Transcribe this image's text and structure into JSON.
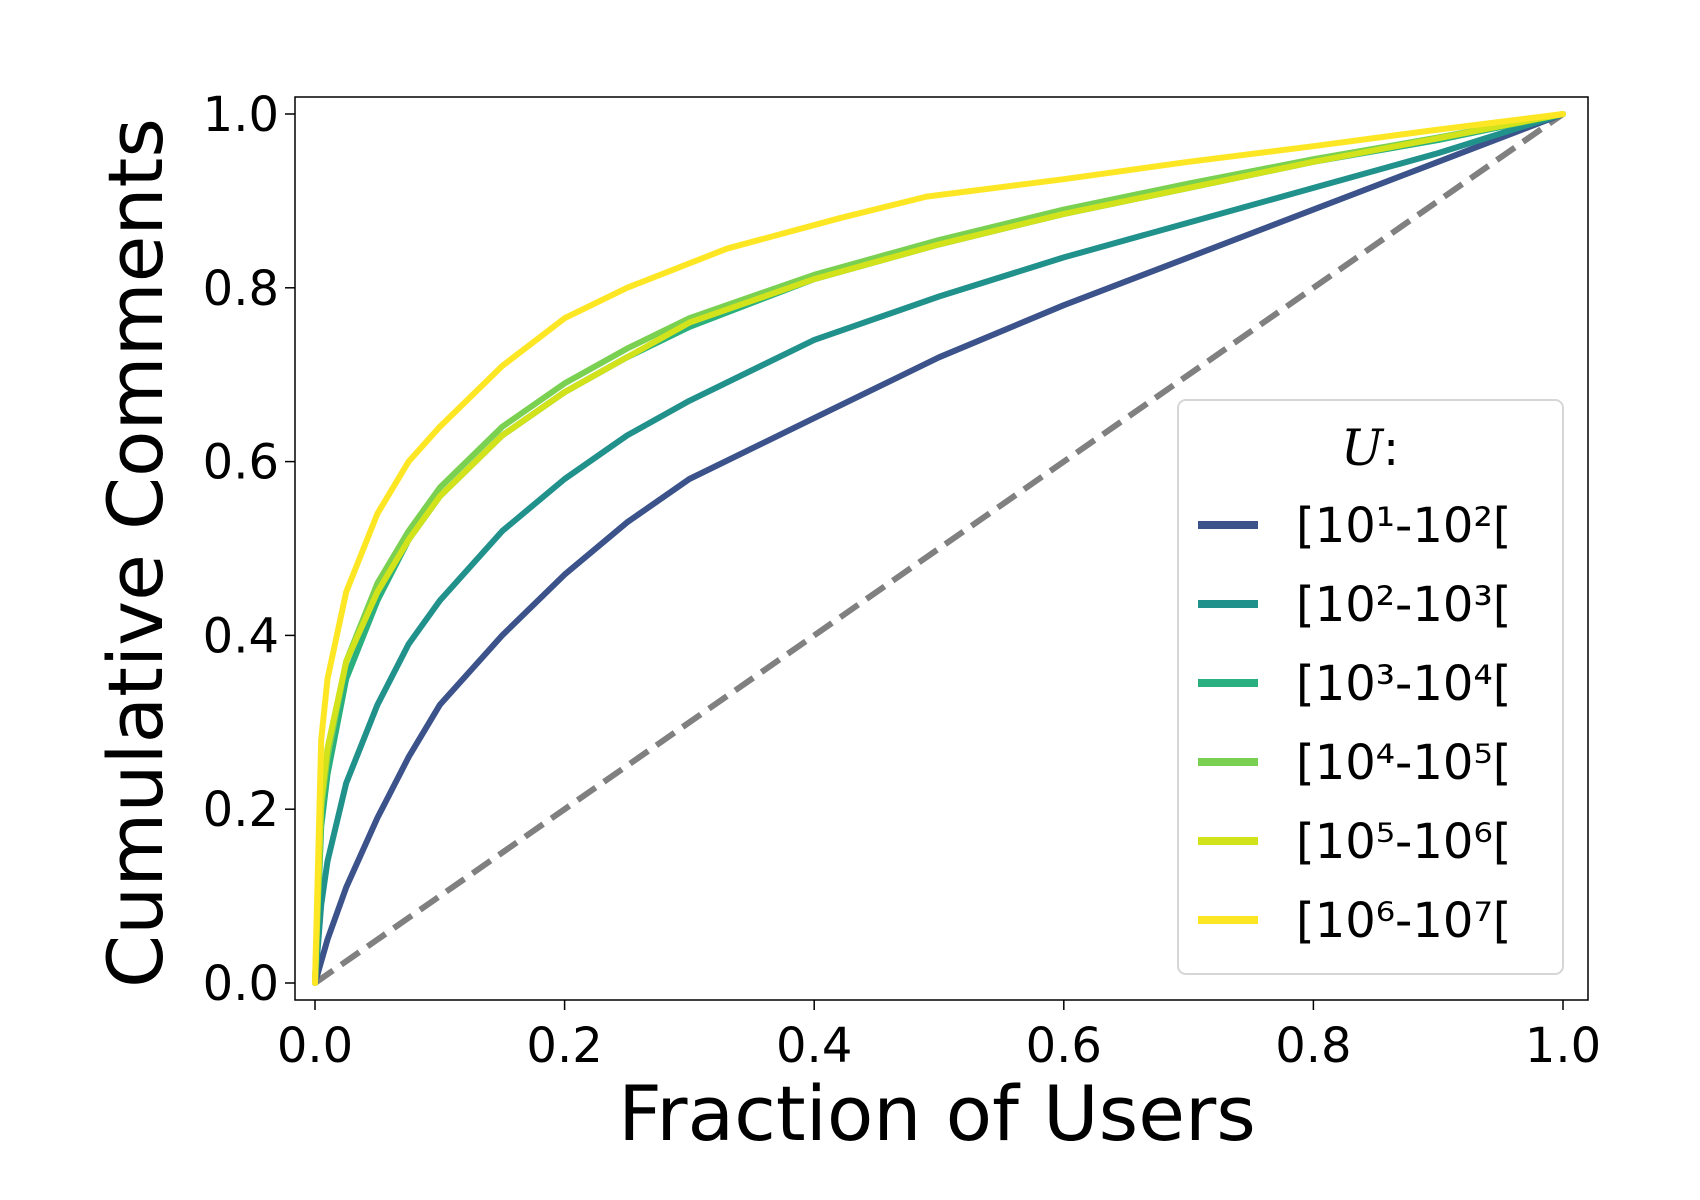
{
  "chart_data": {
    "type": "line",
    "xlabel": "Fraction of Users",
    "ylabel": "Cumulative Comments",
    "xlim": [
      0.0,
      1.0
    ],
    "ylim": [
      0.0,
      1.0
    ],
    "xticks": [
      "0.0",
      "0.2",
      "0.4",
      "0.6",
      "0.8",
      "1.0"
    ],
    "yticks": [
      "0.0",
      "0.2",
      "0.4",
      "0.6",
      "0.8",
      "1.0"
    ],
    "grid": false,
    "legend": {
      "title": "U",
      "title_suffix": ":",
      "placement": "lower-right"
    },
    "reference_line": {
      "style": "dashed",
      "color": "#808080",
      "x": [
        0.0,
        1.0
      ],
      "y": [
        0.0,
        1.0
      ]
    },
    "series": [
      {
        "name": "[10¹-10²[",
        "color": "#3b528b",
        "x": [
          0,
          0.01,
          0.025,
          0.05,
          0.075,
          0.1,
          0.15,
          0.2,
          0.25,
          0.3,
          0.4,
          0.5,
          0.6,
          0.7,
          0.8,
          0.9,
          1.0
        ],
        "y": [
          0,
          0.05,
          0.11,
          0.19,
          0.26,
          0.32,
          0.4,
          0.47,
          0.53,
          0.58,
          0.65,
          0.72,
          0.78,
          0.835,
          0.89,
          0.945,
          1.0
        ]
      },
      {
        "name": "[10²-10³[",
        "color": "#21918c",
        "x": [
          0,
          0.005,
          0.01,
          0.025,
          0.05,
          0.075,
          0.1,
          0.15,
          0.2,
          0.25,
          0.3,
          0.4,
          0.5,
          0.6,
          0.7,
          0.8,
          0.9,
          1.0
        ],
        "y": [
          0,
          0.09,
          0.14,
          0.23,
          0.32,
          0.39,
          0.44,
          0.52,
          0.58,
          0.63,
          0.67,
          0.74,
          0.79,
          0.835,
          0.875,
          0.915,
          0.955,
          1.0
        ]
      },
      {
        "name": "[10³-10⁴[",
        "color": "#2ab07f",
        "x": [
          0,
          0.005,
          0.01,
          0.025,
          0.05,
          0.075,
          0.1,
          0.15,
          0.2,
          0.25,
          0.3,
          0.4,
          0.5,
          0.6,
          0.7,
          0.8,
          0.9,
          1.0
        ],
        "y": [
          0,
          0.18,
          0.24,
          0.35,
          0.44,
          0.51,
          0.56,
          0.63,
          0.68,
          0.72,
          0.755,
          0.81,
          0.85,
          0.885,
          0.915,
          0.945,
          0.97,
          1.0
        ]
      },
      {
        "name": "[10⁴-10⁵[",
        "color": "#7ad151",
        "x": [
          0,
          0.005,
          0.01,
          0.025,
          0.05,
          0.075,
          0.1,
          0.15,
          0.2,
          0.25,
          0.3,
          0.4,
          0.5,
          0.6,
          0.7,
          0.8,
          0.9,
          1.0
        ],
        "y": [
          0,
          0.2,
          0.26,
          0.37,
          0.46,
          0.52,
          0.57,
          0.64,
          0.69,
          0.73,
          0.765,
          0.815,
          0.855,
          0.89,
          0.92,
          0.948,
          0.973,
          1.0
        ]
      },
      {
        "name": "[10⁵-10⁶[",
        "color": "#d2e21b",
        "x": [
          0,
          0.005,
          0.01,
          0.025,
          0.05,
          0.075,
          0.1,
          0.15,
          0.2,
          0.25,
          0.3,
          0.4,
          0.5,
          0.6,
          0.7,
          0.8,
          0.9,
          1.0
        ],
        "y": [
          0,
          0.21,
          0.27,
          0.37,
          0.45,
          0.51,
          0.56,
          0.63,
          0.68,
          0.72,
          0.76,
          0.81,
          0.85,
          0.885,
          0.915,
          0.945,
          0.972,
          1.0
        ]
      },
      {
        "name": "[10⁶-10⁷[",
        "color": "#fde725",
        "x": [
          0,
          0.005,
          0.01,
          0.025,
          0.05,
          0.075,
          0.1,
          0.15,
          0.2,
          0.25,
          0.33,
          0.42,
          0.49,
          0.6,
          0.7,
          0.8,
          0.9,
          1.0
        ],
        "y": [
          0,
          0.28,
          0.35,
          0.45,
          0.54,
          0.6,
          0.64,
          0.71,
          0.765,
          0.8,
          0.845,
          0.88,
          0.905,
          0.925,
          0.945,
          0.963,
          0.982,
          1.0
        ]
      }
    ]
  }
}
